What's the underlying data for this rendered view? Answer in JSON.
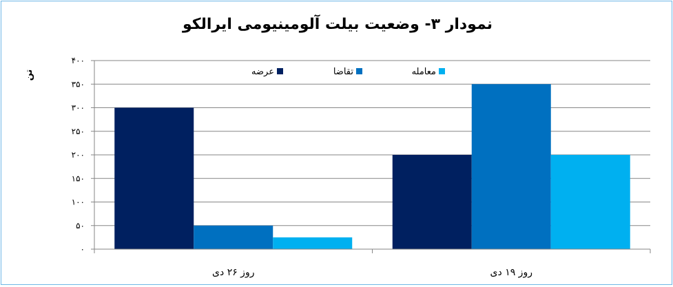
{
  "chart_data": {
    "type": "bar",
    "title": "نمودار ۳- وضعیت بیلت آلومینیومی ایرالکو",
    "ylabel": "تن",
    "categories": [
      "روز ۲۶ دی",
      "روز ۱۹ دی"
    ],
    "series": [
      {
        "name": "عرضه",
        "color": "#002060",
        "values": [
          300,
          200
        ]
      },
      {
        "name": "تقاضا",
        "color": "#0070c0",
        "values": [
          50,
          350
        ]
      },
      {
        "name": "معامله",
        "color": "#00b0f0",
        "values": [
          25,
          200
        ]
      }
    ],
    "ylim": [
      0,
      400
    ],
    "yticks": [
      0,
      50,
      100,
      150,
      200,
      250,
      300,
      350,
      400
    ],
    "ytick_labels": [
      "۰",
      "۵۰",
      "۱۰۰",
      "۱۵۰",
      "۲۰۰",
      "۲۵۰",
      "۳۰۰",
      "۳۵۰",
      "۴۰۰"
    ],
    "grid": true,
    "legend_position": "top-center"
  }
}
